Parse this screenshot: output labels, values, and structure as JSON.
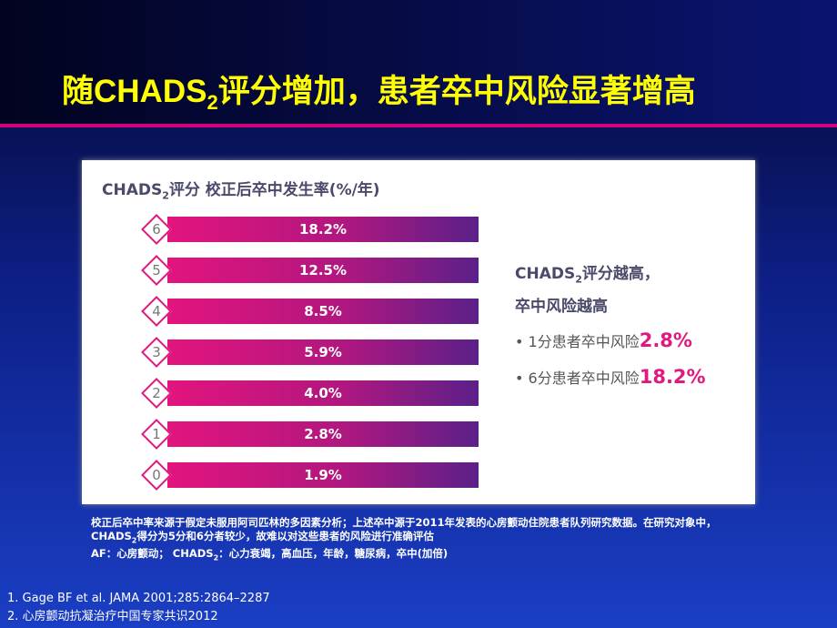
{
  "title": {
    "before": "随CHADS",
    "sub": "2",
    "after": "评分增加，患者卒中风险显著增高"
  },
  "panel": {
    "header": {
      "before": "CHADS",
      "sub": "2",
      "after": "评分  校正后卒中发生率(%/年)"
    },
    "rows": [
      {
        "score": "6",
        "rate": "18.2%"
      },
      {
        "score": "5",
        "rate": "12.5%"
      },
      {
        "score": "4",
        "rate": "8.5%"
      },
      {
        "score": "3",
        "rate": "5.9%"
      },
      {
        "score": "2",
        "rate": "4.0%"
      },
      {
        "score": "1",
        "rate": "2.8%"
      },
      {
        "score": "0",
        "rate": "1.9%"
      }
    ],
    "summary": {
      "before": "CHADS",
      "sub": "2",
      "after": "评分越高，",
      "line2": "卒中风险越高"
    },
    "bullets": [
      {
        "text": "• 1分患者卒中风险",
        "value": "2.8%"
      },
      {
        "text": "• 6分患者卒中风险",
        "value": "18.2%"
      }
    ]
  },
  "notes": [
    {
      "text": "校正后卒中率来源于假定未服用阿司匹林的多因素分析；上述卒中源于2011年发表的心房颤动住院患者队列研究数据。在研究对象中，CHADS",
      "sub": "2",
      "after": "得分为5分和6分者较少，故难以对这些患者的风险进行准确评估"
    },
    {
      "text": "AF：心房颤动； CHADS",
      "sub": "2",
      "after": "：心力衰竭，高血压，年龄，糖尿病，卒中(加倍)"
    }
  ],
  "references": [
    "1. Gage BF et al. JAMA 2001;285:2864–2287",
    "2. 心房颤动抗凝治疗中国专家共识2012"
  ]
}
